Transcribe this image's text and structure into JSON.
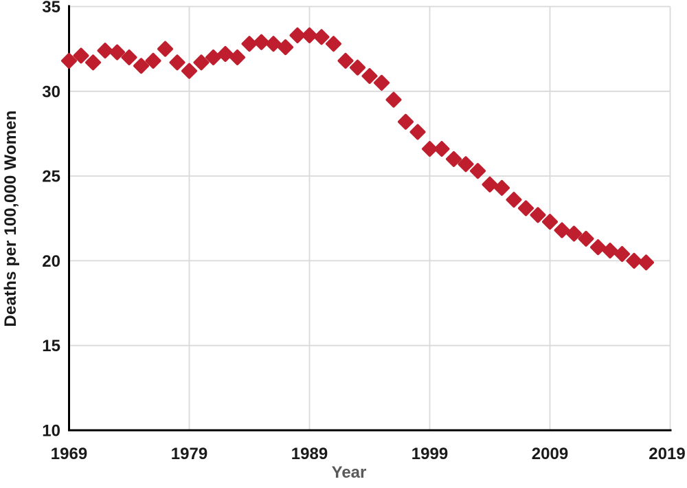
{
  "chart_data": {
    "type": "scatter",
    "title": "",
    "xlabel": "Year",
    "ylabel": "Deaths per 100,000 Women",
    "xlim": [
      1969,
      2019
    ],
    "ylim": [
      10,
      35
    ],
    "x_ticks": [
      "1969",
      "1979",
      "1989",
      "1999",
      "2009",
      "2019"
    ],
    "y_ticks": [
      "10",
      "15",
      "20",
      "25",
      "30",
      "35"
    ],
    "grid": true,
    "legend": "none",
    "marker": "diamond",
    "colors": {
      "marker": "#be1e2d",
      "grid": "#d9d9d9",
      "axis": "#000000",
      "tick_label": "#1a1a1a",
      "y_title": "#1a1a1a",
      "x_title": "#595959"
    },
    "series": [
      {
        "name": "Deaths per 100,000 Women",
        "x": [
          1969,
          1970,
          1971,
          1972,
          1973,
          1974,
          1975,
          1976,
          1977,
          1978,
          1979,
          1980,
          1981,
          1982,
          1983,
          1984,
          1985,
          1986,
          1987,
          1988,
          1989,
          1990,
          1991,
          1992,
          1993,
          1994,
          1995,
          1996,
          1997,
          1998,
          1999,
          2000,
          2001,
          2002,
          2003,
          2004,
          2005,
          2006,
          2007,
          2008,
          2009,
          2010,
          2011,
          2012,
          2013,
          2014,
          2015,
          2016,
          2017
        ],
        "y": [
          31.8,
          32.1,
          31.7,
          32.4,
          32.3,
          32.0,
          31.5,
          31.8,
          32.5,
          31.7,
          31.2,
          31.7,
          32.0,
          32.2,
          32.0,
          32.8,
          32.9,
          32.8,
          32.6,
          33.3,
          33.3,
          33.2,
          32.8,
          31.8,
          31.4,
          30.9,
          30.5,
          29.5,
          28.2,
          27.6,
          26.6,
          26.6,
          26.0,
          25.7,
          25.3,
          24.5,
          24.3,
          23.6,
          23.1,
          22.7,
          22.3,
          21.8,
          21.6,
          21.3,
          20.8,
          20.6,
          20.4,
          20.0,
          19.9
        ]
      }
    ]
  }
}
